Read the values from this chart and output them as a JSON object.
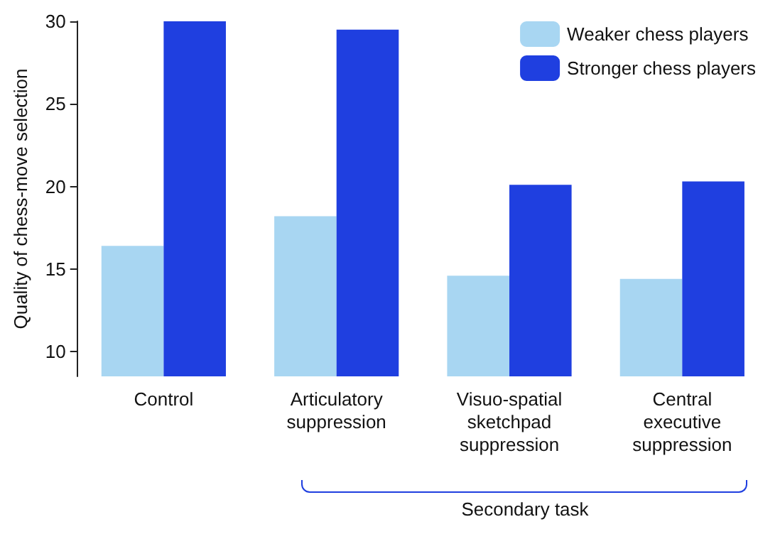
{
  "chart_data": {
    "type": "bar",
    "ylabel": "Quality of chess-move selection",
    "categories": [
      "Control",
      "Articulatory\nsuppression",
      "Visuo-spatial\nsketchpad\nsuppression",
      "Central\nexecutive\nsuppression"
    ],
    "series": [
      {
        "name": "Weaker chess players",
        "color": "#a8d6f2",
        "values": [
          16.4,
          18.2,
          14.6,
          14.4
        ]
      },
      {
        "name": "Stronger chess players",
        "color": "#1f3fe0",
        "values": [
          30,
          29.5,
          20.1,
          20.3
        ]
      }
    ],
    "ylim": [
      8.5,
      30
    ],
    "yticks": [
      10,
      15,
      20,
      25,
      30
    ],
    "grid": false,
    "legend": "top right",
    "annotations": [
      "Secondary task"
    ]
  }
}
